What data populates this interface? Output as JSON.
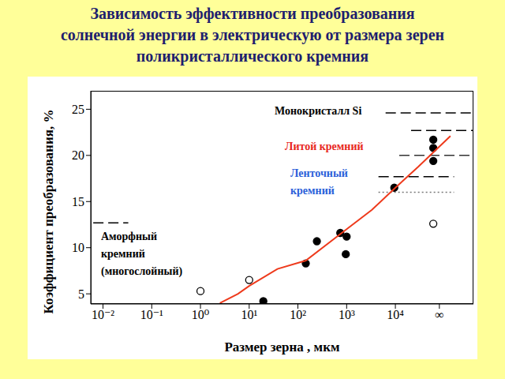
{
  "chart_data": {
    "type": "scatter",
    "title": "Зависимость эффективности преобразования\nсолнечной энергии в электрическую от размера зерен\nполикристаллического кремния",
    "x_label": "Размер зерна , мкм",
    "y_label": "Коэффициент преобразования, %",
    "log": "x",
    "grid": false,
    "xlim": [
      0.0056,
      400000
    ],
    "ylim": [
      3.9,
      27
    ],
    "xticks": [
      {
        "value": 0.01,
        "label": "10⁻²"
      },
      {
        "value": 0.1,
        "label": "10⁻¹"
      },
      {
        "value": 1,
        "label": "10⁰"
      },
      {
        "value": 10,
        "label": "10¹"
      },
      {
        "value": 100,
        "label": "10²"
      },
      {
        "value": 1000,
        "label": "10³"
      },
      {
        "value": 10000,
        "label": "10⁴"
      },
      {
        "value": 80000,
        "label": "∞"
      }
    ],
    "yticks": [
      5,
      10,
      15,
      20,
      25
    ],
    "series": [
      {
        "type": "scatter",
        "marker": "filled",
        "color": "#000000",
        "x": [
          19.5,
          145,
          245,
          740,
          1000,
          960,
          9500,
          60000,
          60000,
          60000
        ],
        "values": [
          4.2,
          8.3,
          10.7,
          11.6,
          11.2,
          9.3,
          16.5,
          21.7,
          20.8,
          19.4
        ]
      },
      {
        "type": "scatter",
        "marker": "open",
        "color": "#000000",
        "x": [
          1,
          10,
          60000
        ],
        "values": [
          5.3,
          6.5,
          12.6
        ]
      },
      {
        "type": "line",
        "color": "#ee3a1c",
        "x": [
          2.5,
          5.9,
          10,
          38,
          145,
          1000,
          3300,
          10000,
          30000,
          135000
        ],
        "values": [
          4.0,
          5.0,
          5.85,
          7.7,
          8.6,
          12.0,
          14.1,
          16.5,
          18.8,
          22.1
        ]
      }
    ],
    "levels": [
      {
        "y": 24.6,
        "x": [
          6300,
          400000
        ],
        "line_style": "dashed",
        "color": "#000000"
      },
      {
        "y": 22.7,
        "x": [
          21000,
          400000
        ],
        "line_style": "dashed",
        "color": "#000000"
      },
      {
        "y": 20.0,
        "x": [
          12000,
          400000
        ],
        "line_style": "dashed",
        "color": "#333333"
      },
      {
        "y": 17.7,
        "x": [
          4500,
          160000
        ],
        "line_style": "dashed",
        "color": "#000000"
      },
      {
        "y": 16.0,
        "x": [
          4500,
          160000
        ],
        "line_style": "dotted",
        "color": "#777777"
      },
      {
        "y": 12.7,
        "x": [
          0.0063,
          0.033
        ],
        "line_style": "dashed",
        "color": "#000000"
      }
    ],
    "annotations": [
      {
        "text": "Монокристалл Si",
        "color": "#000000"
      },
      {
        "text": "Литой кремний",
        "color": "#e8281e"
      },
      {
        "text": "Ленточный\nкремний",
        "color": "#2b5fd9"
      },
      {
        "text": "Аморфный\nкремний\n(многослойный)",
        "color": "#000000"
      }
    ]
  }
}
